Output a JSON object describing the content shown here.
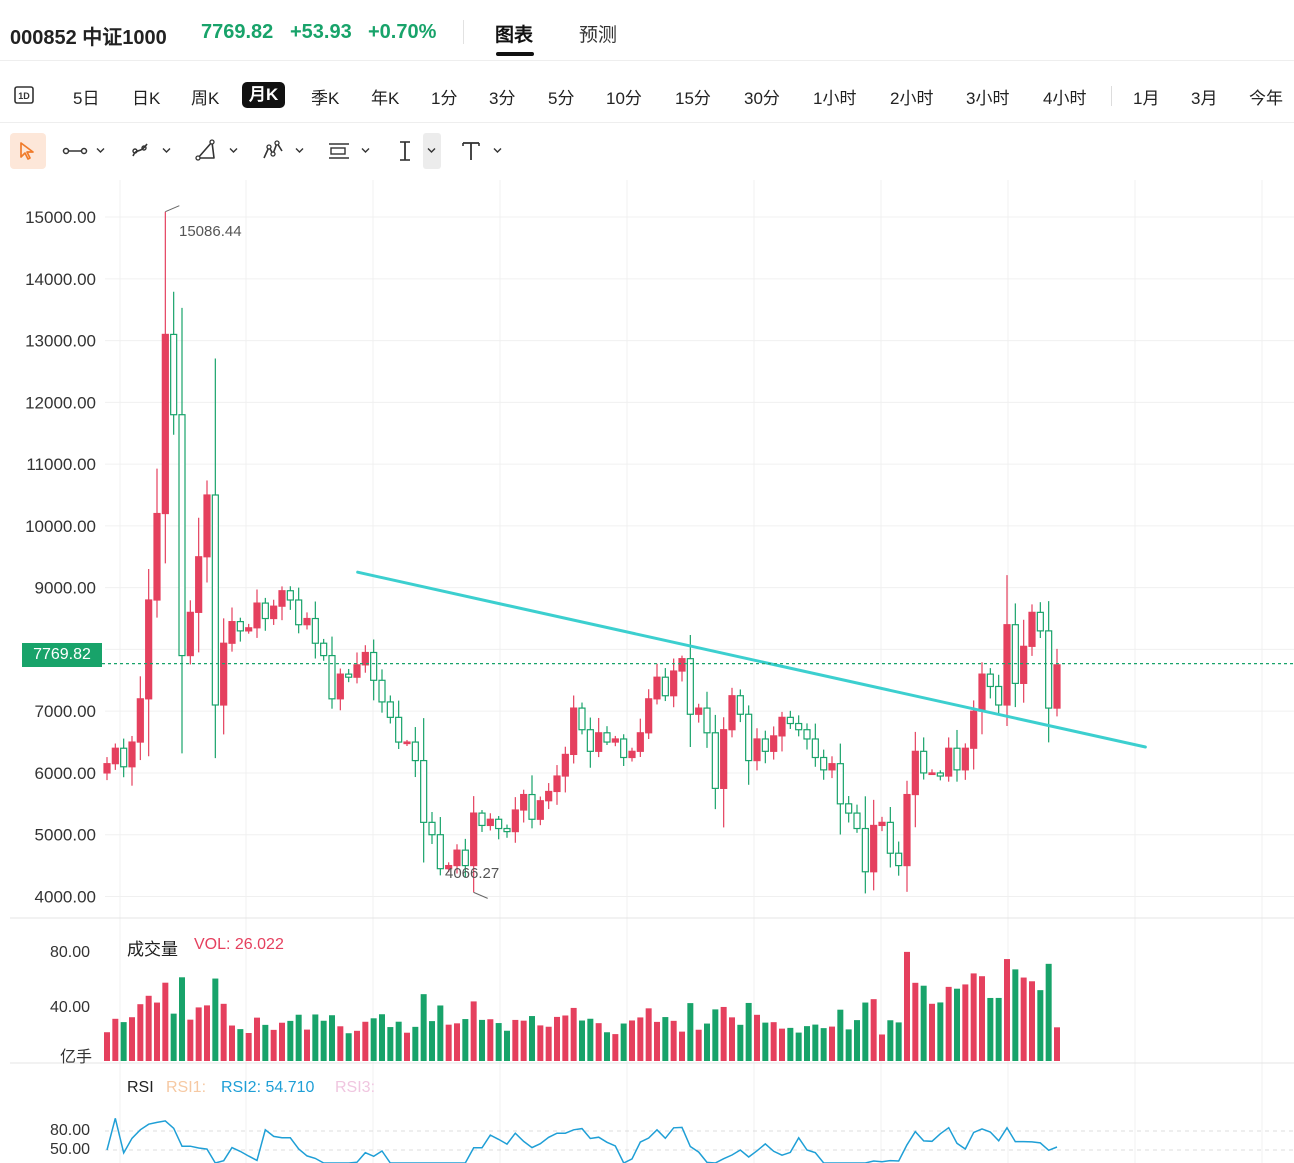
{
  "header": {
    "symbol": "000852 中证1000",
    "price": "7769.82",
    "change": "+53.93",
    "change_pct": "+0.70%",
    "tabs": [
      "图表",
      "预测"
    ],
    "active_tab": "图表"
  },
  "periods": [
    "5日",
    "日K",
    "周K",
    "月K",
    "季K",
    "年K",
    "1分",
    "3分",
    "5分",
    "10分",
    "15分",
    "30分",
    "1小时",
    "2小时",
    "3小时",
    "4小时",
    "1月",
    "3月",
    "今年"
  ],
  "active_period": "月K",
  "drawing_tools": [
    "pointer-icon",
    "segment-icon",
    "brush-icon",
    "triangle-icon",
    "pattern-icon",
    "text-block-icon",
    "text-cursor-icon",
    "text-icon"
  ],
  "colors": {
    "up": "#e5405e",
    "down": "#18a36a",
    "trendline": "#3ccfcf",
    "current_price_bg": "#18a36a"
  },
  "chart_data": [
    {
      "type": "candlestick",
      "yticks": [
        "15000.00",
        "14000.00",
        "13000.00",
        "12000.00",
        "11000.00",
        "10000.00",
        "9000.00",
        "8000.00",
        "7000.00",
        "6000.00",
        "5000.00",
        "4000.00"
      ],
      "ylim": [
        3700,
        15600
      ],
      "current_price_label": "7769.82",
      "current_price": 7769.82,
      "high_label": "15086.44",
      "low_label": "4066.27",
      "trendline": {
        "from": [
          0.34,
          9250
        ],
        "to": [
          1.4,
          6420
        ]
      },
      "closes": [
        6150,
        6400,
        6100,
        6500,
        7200,
        8800,
        10200,
        13100,
        11800,
        7900,
        8600,
        9500,
        10500,
        7100,
        8100,
        8450,
        8300,
        8350,
        8750,
        8500,
        8700,
        8950,
        8800,
        8400,
        8500,
        8100,
        7900,
        7200,
        7600,
        7550,
        7750,
        7950,
        7500,
        7150,
        6900,
        6500,
        6500,
        6200,
        5200,
        5000,
        4450,
        4500,
        4750,
        4500,
        5350,
        5150,
        5250,
        5100,
        5050,
        5400,
        5650,
        5250,
        5550,
        5700,
        5950,
        6300,
        7050,
        6700,
        6350,
        6650,
        6500,
        6550,
        6250,
        6350,
        6650,
        7200,
        7550,
        7250,
        7650,
        7850,
        6950,
        7050,
        6650,
        5750,
        6700,
        7250,
        6950,
        6200,
        6550,
        6350,
        6600,
        6900,
        6800,
        6700,
        6550,
        6250,
        6050,
        6150,
        5500,
        5350,
        5100,
        4400,
        5150,
        5200,
        4700,
        4500,
        5650,
        6350,
        6000,
        6000,
        5950,
        6400,
        6050,
        6400,
        7000,
        7600,
        7400,
        7100,
        8400,
        7450,
        8050,
        8600,
        8300,
        7050,
        7750
      ],
      "volume": {
        "label": "成交量",
        "indicator": "VOL: 26.022",
        "yticks": [
          "80.00",
          "40.00"
        ],
        "unit": "亿手",
        "ylim": [
          0,
          95
        ],
        "value": 26.022
      },
      "rsi": {
        "label": "RSI",
        "rsi1": "RSI1:",
        "rsi2": "RSI2: 54.710",
        "rsi3": "RSI3:",
        "yticks": [
          "80.00",
          "50.00"
        ],
        "value": 54.71
      }
    }
  ]
}
